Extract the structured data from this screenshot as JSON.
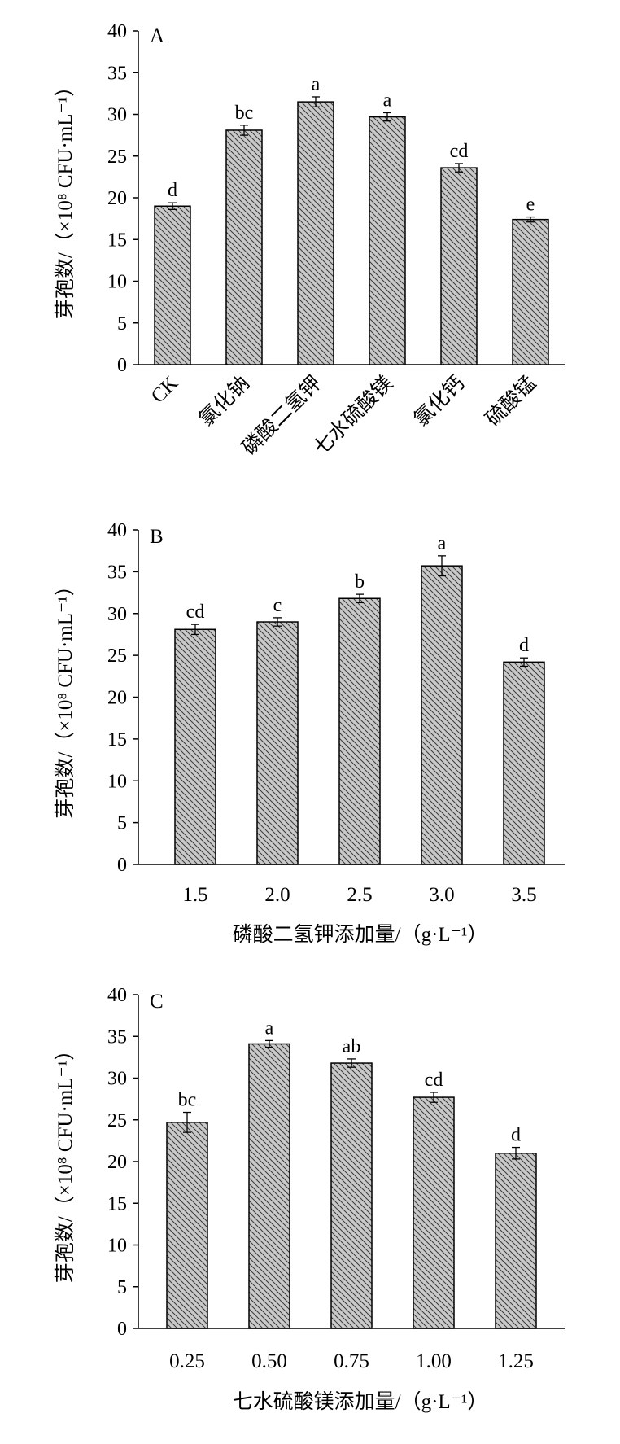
{
  "style": {
    "bar_fill": "#c9c9c9",
    "hatch_color": "#3a3a3a",
    "axis_color": "#000000"
  },
  "chart_data": [
    {
      "type": "bar",
      "panel": "A",
      "ylabel": "芽孢数/（×10⁸ CFU·mL⁻¹）",
      "xlabel": "",
      "ylim": [
        0,
        40
      ],
      "yticks": [
        0,
        5,
        10,
        15,
        20,
        25,
        30,
        35,
        40
      ],
      "categories": [
        "CK",
        "氯化钠",
        "磷酸二氢钾",
        "七水硫酸镁",
        "氯化钙",
        "硫酸锰"
      ],
      "values": [
        19.0,
        28.1,
        31.5,
        29.7,
        23.6,
        17.4
      ],
      "errors": [
        0.4,
        0.6,
        0.6,
        0.5,
        0.5,
        0.3
      ],
      "significance": [
        "d",
        "bc",
        "a",
        "a",
        "cd",
        "e"
      ]
    },
    {
      "type": "bar",
      "panel": "B",
      "ylabel": "芽孢数/（×10⁸ CFU·mL⁻¹）",
      "xlabel": "磷酸二氢钾添加量/（g·L⁻¹）",
      "ylim": [
        0,
        40
      ],
      "yticks": [
        0,
        5,
        10,
        15,
        20,
        25,
        30,
        35,
        40
      ],
      "categories": [
        "1.5",
        "2.0",
        "2.5",
        "3.0",
        "3.5"
      ],
      "values": [
        28.1,
        29.0,
        31.8,
        35.7,
        24.2
      ],
      "errors": [
        0.6,
        0.5,
        0.5,
        1.2,
        0.5
      ],
      "significance": [
        "cd",
        "c",
        "b",
        "a",
        "d"
      ]
    },
    {
      "type": "bar",
      "panel": "C",
      "ylabel": "芽孢数/（×10⁸ CFU·mL⁻¹）",
      "xlabel": "七水硫酸镁添加量/（g·L⁻¹）",
      "ylim": [
        0,
        40
      ],
      "yticks": [
        0,
        5,
        10,
        15,
        20,
        25,
        30,
        35,
        40
      ],
      "categories": [
        "0.25",
        "0.50",
        "0.75",
        "1.00",
        "1.25"
      ],
      "values": [
        24.7,
        34.1,
        31.8,
        27.7,
        21.0
      ],
      "errors": [
        1.2,
        0.4,
        0.5,
        0.6,
        0.7
      ],
      "significance": [
        "bc",
        "a",
        "ab",
        "cd",
        "d"
      ]
    }
  ]
}
